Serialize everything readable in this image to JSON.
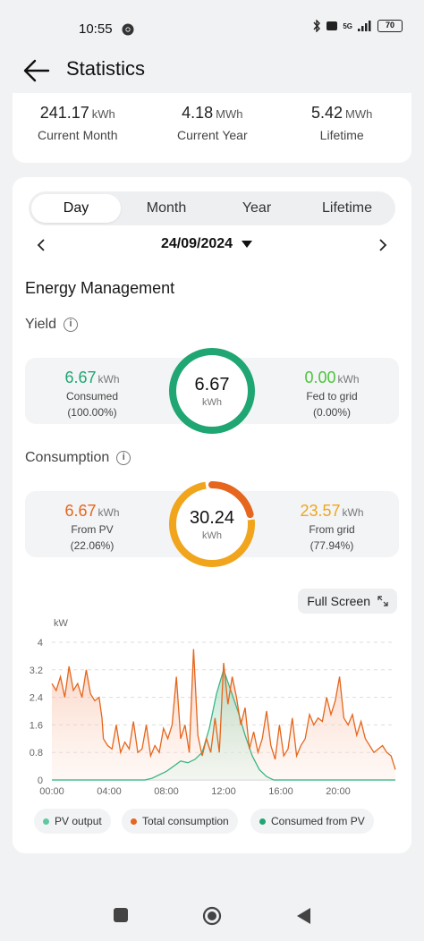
{
  "status": {
    "time": "10:55",
    "battery": "70",
    "network": "5G"
  },
  "header": {
    "title": "Statistics"
  },
  "summary": [
    {
      "value": "241.17",
      "unit": "kWh",
      "label": "Current Month"
    },
    {
      "value": "4.18",
      "unit": "MWh",
      "label": "Current Year"
    },
    {
      "value": "5.42",
      "unit": "MWh",
      "label": "Lifetime"
    }
  ],
  "tabs": [
    "Day",
    "Month",
    "Year",
    "Lifetime"
  ],
  "active_tab": "Day",
  "date": "24/09/2024",
  "energy": {
    "title": "Energy Management",
    "yield": {
      "title": "Yield",
      "left": {
        "value": "6.67",
        "unit": "kWh",
        "label": "Consumed",
        "pct": "(100.00%)"
      },
      "center": {
        "value": "6.67",
        "unit": "kWh"
      },
      "right": {
        "value": "0.00",
        "unit": "kWh",
        "label": "Fed to grid",
        "pct": "(0.00%)"
      }
    },
    "consumption": {
      "title": "Consumption",
      "left": {
        "value": "6.67",
        "unit": "kWh",
        "label": "From PV",
        "pct": "(22.06%)"
      },
      "center": {
        "value": "30.24",
        "unit": "kWh"
      },
      "right": {
        "value": "23.57",
        "unit": "kWh",
        "label": "From grid",
        "pct": "(77.94%)"
      }
    }
  },
  "fullscreen_label": "Full Screen",
  "colors": {
    "green": "#1fa672",
    "light_green": "#4cc43a",
    "orange": "#e5661c",
    "yellow": "#f0a51d",
    "pv": "#5ec9a0"
  },
  "chart_data": {
    "type": "line",
    "ylabel": "kW",
    "yticks": [
      "0",
      "0.8",
      "1.6",
      "2.4",
      "3.2",
      "4"
    ],
    "ylim": [
      0,
      4
    ],
    "xticks": [
      "00:00",
      "04:00",
      "08:00",
      "12:00",
      "16:00",
      "20:00"
    ],
    "xlim": [
      0,
      24
    ],
    "series": [
      {
        "name": "PV output",
        "color": "#5ec9a0",
        "x": [
          0,
          6.5,
          7,
          7.5,
          8,
          8.5,
          9,
          9.5,
          10,
          10.5,
          11,
          11.5,
          12,
          12.5,
          13,
          13.5,
          14,
          14.5,
          15,
          15.5,
          24
        ],
        "y": [
          0,
          0,
          0.05,
          0.15,
          0.25,
          0.4,
          0.55,
          0.5,
          0.6,
          0.8,
          1.5,
          2.5,
          3.2,
          2.6,
          2.0,
          1.3,
          0.7,
          0.3,
          0.1,
          0,
          0
        ]
      },
      {
        "name": "Total consumption",
        "color": "#e5661c",
        "x": [
          0,
          0.3,
          0.6,
          0.9,
          1.2,
          1.5,
          1.8,
          2.1,
          2.4,
          2.7,
          3.0,
          3.3,
          3.5,
          3.6,
          3.9,
          4.2,
          4.5,
          4.8,
          5.1,
          5.4,
          5.7,
          6.0,
          6.3,
          6.6,
          6.9,
          7.2,
          7.5,
          7.8,
          8.1,
          8.4,
          8.7,
          9.0,
          9.3,
          9.6,
          9.9,
          10.2,
          10.5,
          10.8,
          11.1,
          11.4,
          11.7,
          12.0,
          12.3,
          12.6,
          12.9,
          13.2,
          13.5,
          13.8,
          14.1,
          14.4,
          14.7,
          15.0,
          15.3,
          15.6,
          15.9,
          16.2,
          16.5,
          16.8,
          17.1,
          17.4,
          17.7,
          18.0,
          18.3,
          18.6,
          18.9,
          19.2,
          19.5,
          19.8,
          20.1,
          20.4,
          20.7,
          21.0,
          21.3,
          21.6,
          21.9,
          22.2,
          22.5,
          22.8,
          23.1,
          23.4,
          23.7,
          24.0
        ],
        "y": [
          2.8,
          2.6,
          3.0,
          2.4,
          3.3,
          2.6,
          2.8,
          2.4,
          3.2,
          2.5,
          2.3,
          2.4,
          1.8,
          1.2,
          1.0,
          0.9,
          1.6,
          0.8,
          1.1,
          0.9,
          1.7,
          0.8,
          0.9,
          1.6,
          0.7,
          1.0,
          0.8,
          1.5,
          1.2,
          1.6,
          3.0,
          1.2,
          1.6,
          0.8,
          3.8,
          1.3,
          0.7,
          1.2,
          0.8,
          1.8,
          0.8,
          3.4,
          2.2,
          3.0,
          2.4,
          1.6,
          2.1,
          0.9,
          1.4,
          0.8,
          1.2,
          2.0,
          1.0,
          0.6,
          1.6,
          0.7,
          0.9,
          1.8,
          0.7,
          1.0,
          1.2,
          1.9,
          1.6,
          1.8,
          1.7,
          2.4,
          1.9,
          2.3,
          3.0,
          1.8,
          1.6,
          1.9,
          1.3,
          1.7,
          1.2,
          1.0,
          0.8,
          0.9,
          1.0,
          0.8,
          0.7,
          0.3
        ]
      },
      {
        "name": "Consumed from PV",
        "color": "#1fa672",
        "x": [
          0,
          6.5,
          7,
          7.5,
          8,
          8.5,
          9,
          9.5,
          10,
          10.5,
          11,
          11.5,
          12,
          12.5,
          13,
          13.5,
          14,
          14.5,
          15,
          15.5,
          24
        ],
        "y": [
          0,
          0,
          0.05,
          0.15,
          0.25,
          0.4,
          0.55,
          0.5,
          0.6,
          0.8,
          1.5,
          2.5,
          3.2,
          2.6,
          2.0,
          1.3,
          0.7,
          0.3,
          0.1,
          0,
          0
        ]
      }
    ],
    "legend": [
      "PV output",
      "Total consumption",
      "Consumed from PV"
    ]
  }
}
